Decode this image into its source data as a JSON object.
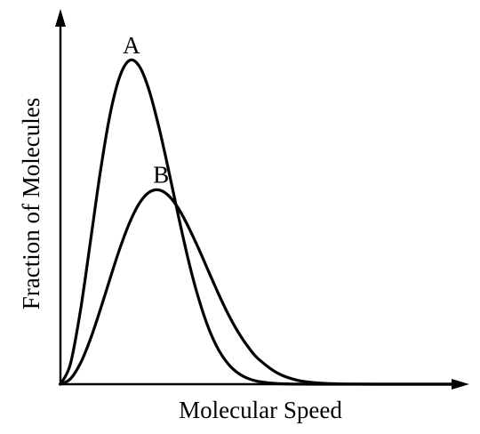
{
  "chart_data": {
    "type": "line",
    "title": "",
    "xlabel": "Molecular Speed",
    "ylabel": "Fraction of Molecules",
    "xlim": [
      0,
      10
    ],
    "ylim": [
      0,
      1
    ],
    "grid": false,
    "ticks": false,
    "series": [
      {
        "name": "A",
        "x": [
          0,
          0.25,
          0.5,
          0.75,
          1.0,
          1.25,
          1.5,
          1.75,
          2.0,
          2.25,
          2.5,
          2.75,
          3.0,
          3.25,
          3.5,
          3.75,
          4.0,
          4.25,
          4.5,
          4.75,
          5.0,
          5.5,
          6.0,
          6.5,
          7.0,
          7.5,
          8.0,
          8.5,
          9.0,
          9.5,
          10.0
        ],
        "values": [
          0,
          0.057,
          0.208,
          0.403,
          0.603,
          0.771,
          0.883,
          0.929,
          0.911,
          0.84,
          0.732,
          0.605,
          0.473,
          0.349,
          0.243,
          0.159,
          0.098,
          0.057,
          0.031,
          0.016,
          0.008,
          0.0015,
          0.0002,
          0,
          0,
          0,
          0,
          0,
          0,
          0,
          0
        ]
      },
      {
        "name": "B",
        "x": [
          0,
          0.25,
          0.5,
          0.75,
          1.0,
          1.25,
          1.5,
          1.75,
          2.0,
          2.25,
          2.5,
          2.75,
          3.0,
          3.25,
          3.5,
          3.75,
          4.0,
          4.25,
          4.5,
          4.75,
          5.0,
          5.5,
          6.0,
          6.5,
          7.0,
          7.5,
          8.0,
          8.5,
          9.0,
          9.5,
          10.0
        ],
        "values": [
          0,
          0.015,
          0.059,
          0.127,
          0.211,
          0.301,
          0.389,
          0.464,
          0.52,
          0.551,
          0.557,
          0.539,
          0.501,
          0.448,
          0.387,
          0.322,
          0.258,
          0.199,
          0.148,
          0.106,
          0.073,
          0.031,
          0.011,
          0.0035,
          0.001,
          0.0002,
          0,
          0,
          0,
          0,
          0
        ]
      }
    ]
  }
}
